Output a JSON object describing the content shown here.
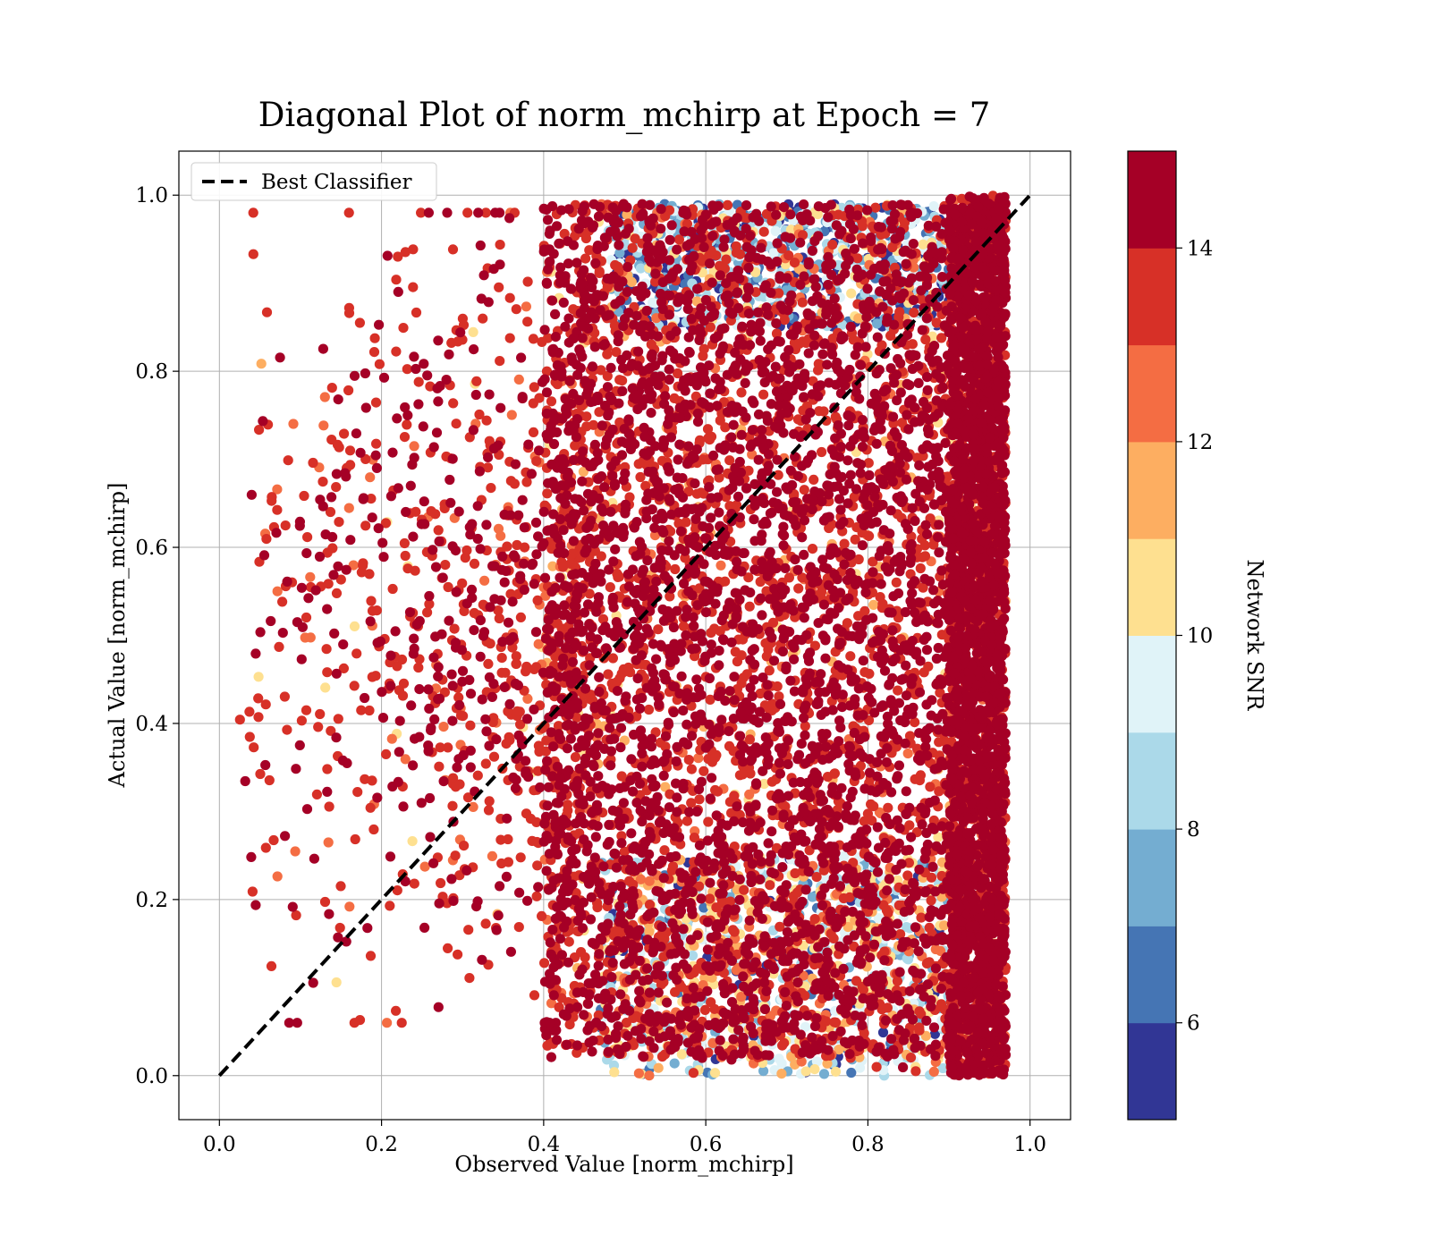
{
  "chart_data": {
    "type": "scatter",
    "title": "Diagonal Plot of norm_mchirp at Epoch = 7",
    "xlabel": "Observed Value [norm_mchirp]",
    "ylabel": "Actual Value [norm_mchirp]",
    "xlim": [
      -0.05,
      1.05
    ],
    "ylim": [
      -0.05,
      1.05
    ],
    "x_ticks": [
      "0.0",
      "0.2",
      "0.4",
      "0.6",
      "0.8",
      "1.0"
    ],
    "x_tick_values": [
      0.0,
      0.2,
      0.4,
      0.6,
      0.8,
      1.0
    ],
    "y_ticks": [
      "0.0",
      "0.2",
      "0.4",
      "0.6",
      "0.8",
      "1.0"
    ],
    "y_tick_values": [
      0.0,
      0.2,
      0.4,
      0.6,
      0.8,
      1.0
    ],
    "grid": true,
    "legend": {
      "position": "top-left",
      "entries": [
        {
          "label": "Best Classifier",
          "style": "dashed",
          "color": "#000000"
        }
      ]
    },
    "reference_line": {
      "label": "Best Classifier",
      "x": [
        0.0,
        1.0
      ],
      "y": [
        0.0,
        1.0
      ]
    },
    "colorbar": {
      "label": "Network SNR",
      "range": [
        5,
        15
      ],
      "tick_labels": [
        "6",
        "8",
        "10",
        "12",
        "14"
      ],
      "tick_values": [
        6,
        8,
        10,
        12,
        14
      ],
      "bins": 10,
      "colors": [
        "#313695",
        "#4575b4",
        "#74add1",
        "#abd9e9",
        "#e0f3f8",
        "#fee090",
        "#fdae61",
        "#f46d43",
        "#d73027",
        "#a50026"
      ]
    },
    "point_clusters": [
      {
        "description": "bulk",
        "x_range": [
          0.4,
          0.97
        ],
        "y_range": [
          0.02,
          0.99
        ],
        "snr_mean": 14.5
      },
      {
        "description": "right edge pile-up",
        "x_range": [
          0.9,
          0.97
        ],
        "y_range": [
          0.0,
          1.0
        ],
        "snr_mean": 15.0
      },
      {
        "description": "sparse left spread",
        "x_range": [
          0.02,
          0.45
        ],
        "y_range": [
          0.06,
          0.98
        ],
        "snr_mean": 14.0
      },
      {
        "description": "low-SNR top band",
        "x_range": [
          0.48,
          0.9
        ],
        "y_range": [
          0.85,
          0.99
        ],
        "snr_mean": 8.0
      },
      {
        "description": "low-SNR bottom band",
        "x_range": [
          0.47,
          0.9
        ],
        "y_range": [
          0.0,
          0.25
        ],
        "snr_mean": 9.5
      }
    ]
  }
}
